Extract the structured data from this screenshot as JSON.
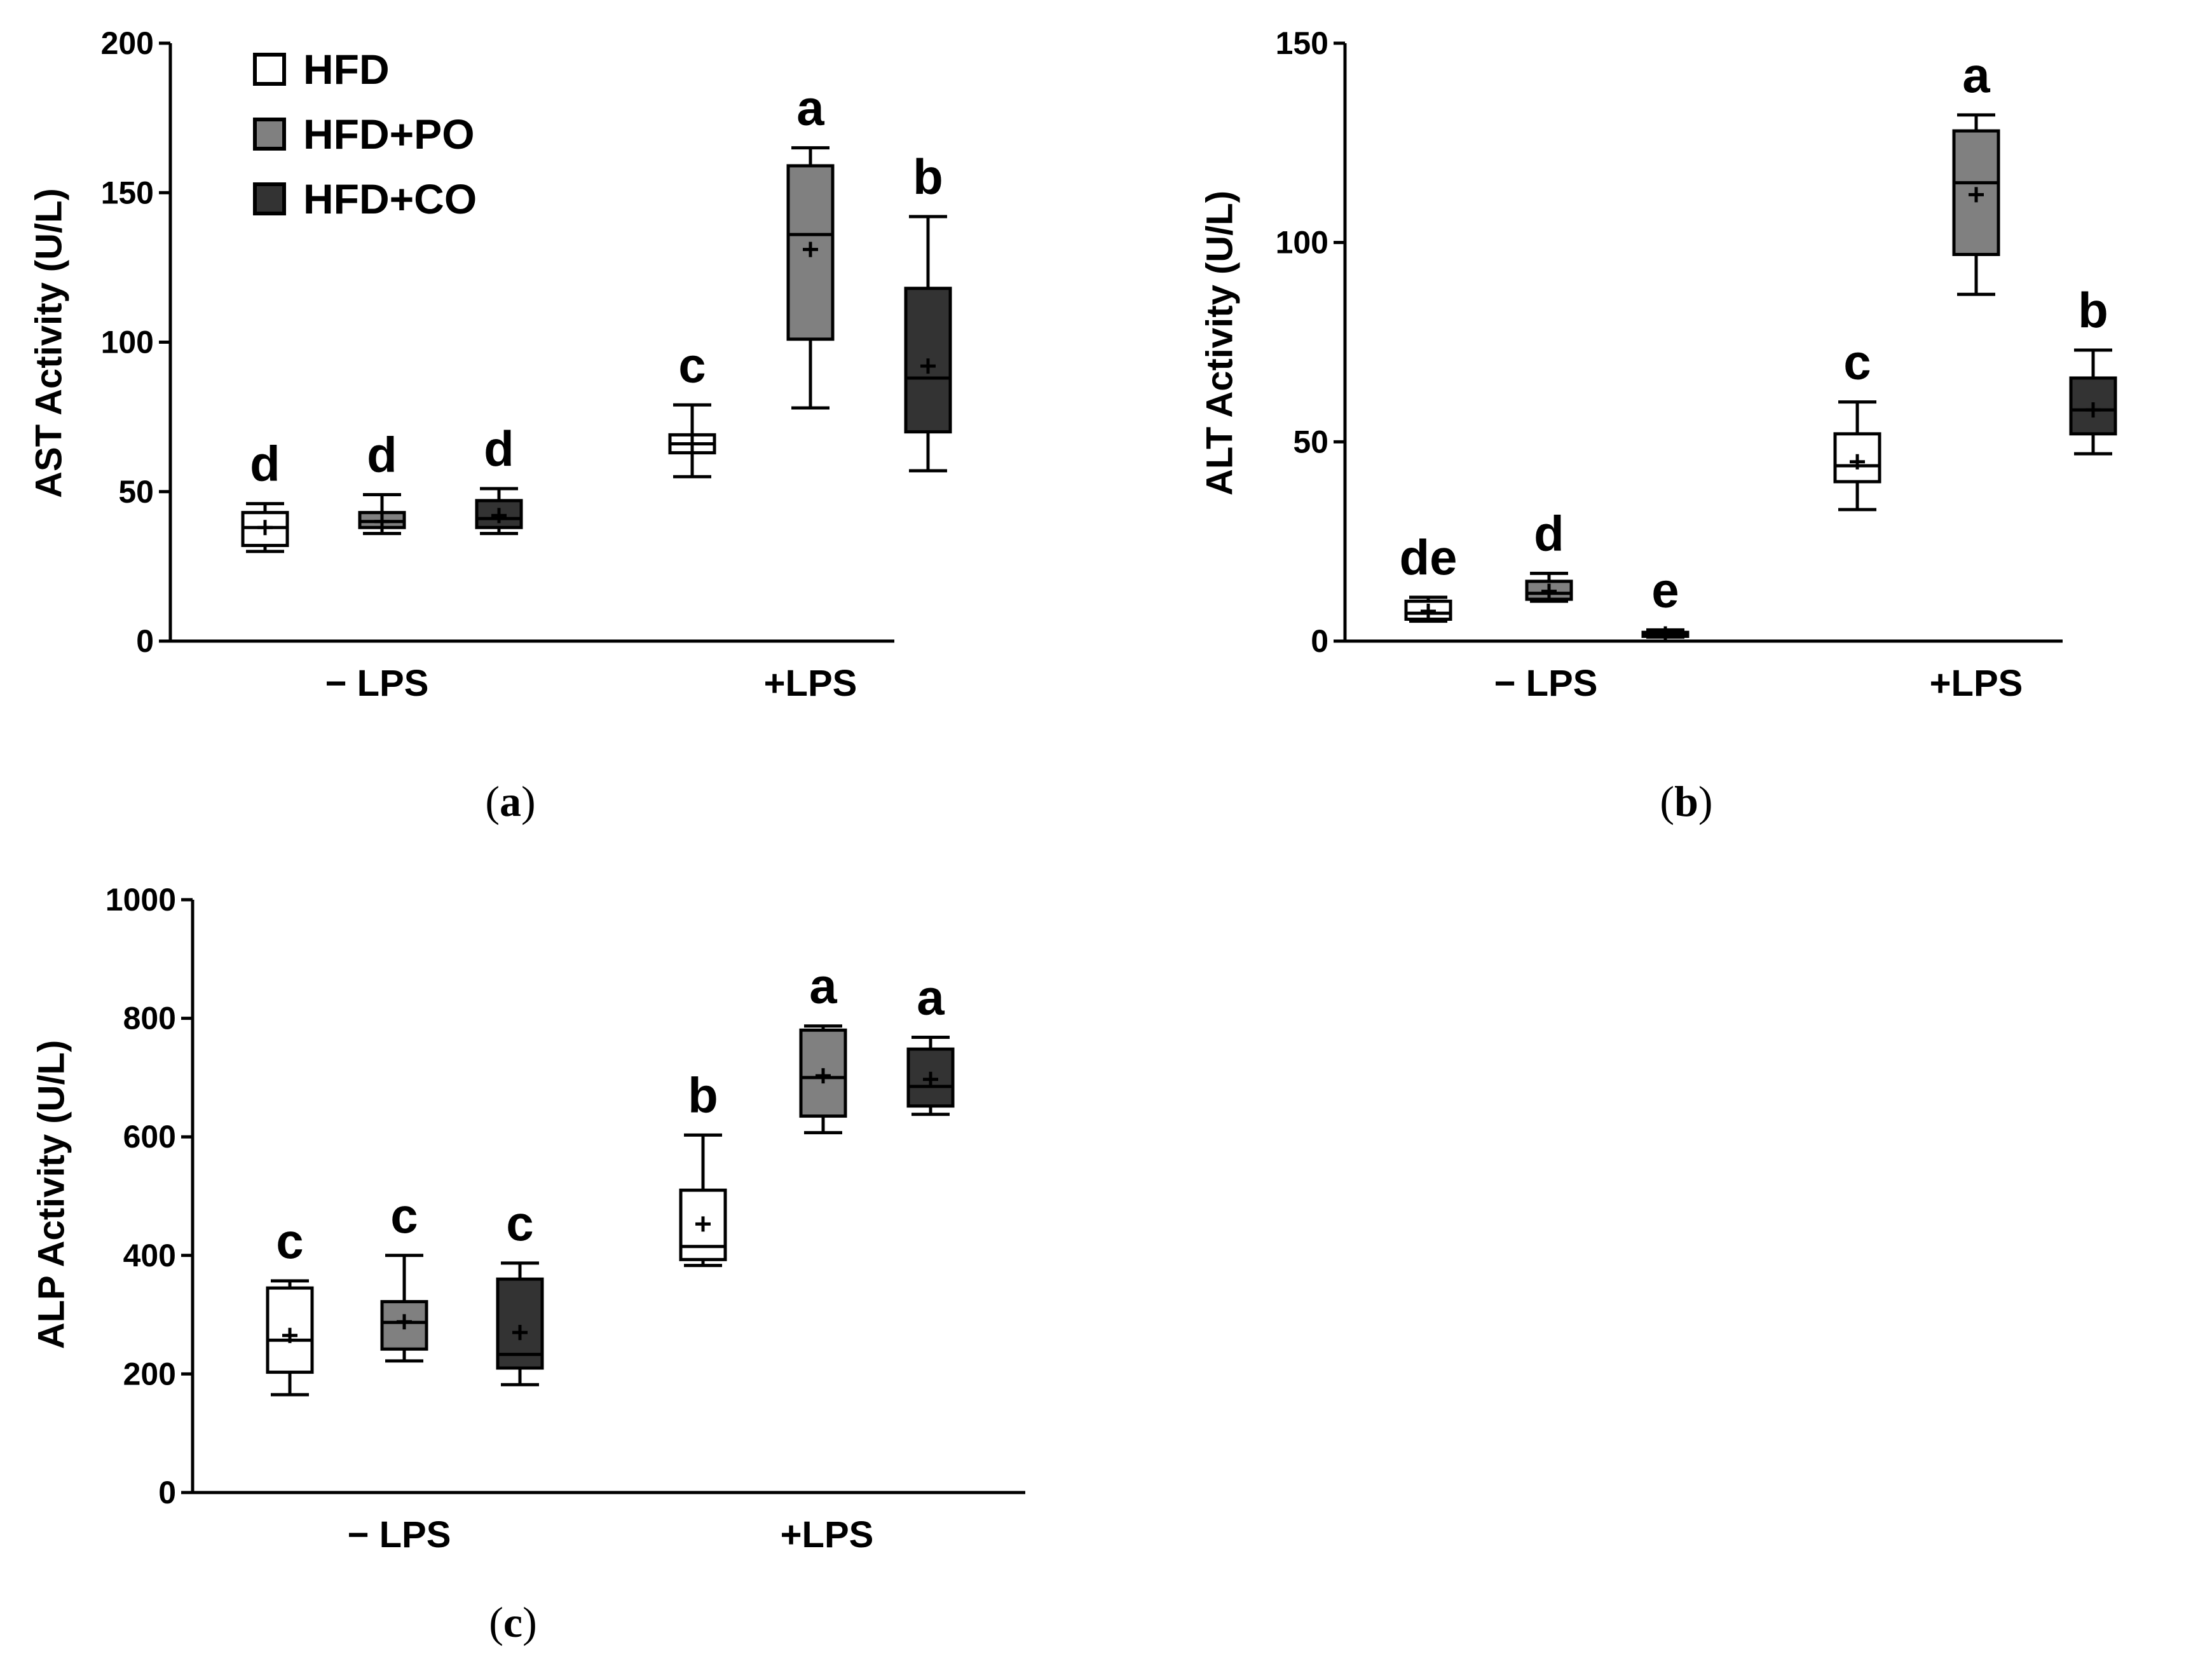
{
  "colors": {
    "HFD": "#ffffff",
    "HFD+PO": "#808080",
    "HFD+CO": "#333333",
    "stroke": "#000000"
  },
  "legend": {
    "entries": [
      "HFD",
      "HFD+PO",
      "HFD+CO"
    ]
  },
  "chart_data": [
    {
      "type": "box",
      "panel": "(a)",
      "caption": "a",
      "title": "",
      "xlabel": "",
      "ylabel": "AST Activity (U/L)",
      "ylim": [
        0,
        200
      ],
      "yticks": [
        0,
        50,
        100,
        150,
        200
      ],
      "categories": [
        "− LPS",
        "+LPS"
      ],
      "series": [
        {
          "name": "HFD",
          "boxes": [
            {
              "min": 30,
              "q1": 32,
              "median": 38,
              "q3": 43,
              "max": 46,
              "mean": 38,
              "letter": "d"
            },
            {
              "min": 55,
              "q1": 63,
              "median": 66,
              "q3": 69,
              "max": 79,
              "mean": 66,
              "letter": "c"
            }
          ]
        },
        {
          "name": "HFD+PO",
          "boxes": [
            {
              "min": 36,
              "q1": 38,
              "median": 40,
              "q3": 43,
              "max": 49,
              "mean": 40,
              "letter": "d"
            },
            {
              "min": 78,
              "q1": 101,
              "median": 136,
              "q3": 159,
              "max": 165,
              "mean": 131,
              "letter": "a"
            }
          ]
        },
        {
          "name": "HFD+CO",
          "boxes": [
            {
              "min": 36,
              "q1": 38,
              "median": 41,
              "q3": 47,
              "max": 51,
              "mean": 42,
              "letter": "d"
            },
            {
              "min": 57,
              "q1": 70,
              "median": 88,
              "q3": 118,
              "max": 142,
              "mean": 92,
              "letter": "b"
            }
          ]
        }
      ]
    },
    {
      "type": "box",
      "panel": "(b)",
      "caption": "b",
      "title": "",
      "xlabel": "",
      "ylabel": "ALT Activity (U/L)",
      "ylim": [
        0,
        150
      ],
      "yticks": [
        0,
        50,
        100,
        150
      ],
      "categories": [
        "− LPS",
        "+LPS"
      ],
      "series": [
        {
          "name": "HFD",
          "boxes": [
            {
              "min": 5,
              "q1": 5.5,
              "median": 7,
              "q3": 10,
              "max": 11,
              "mean": 7.5,
              "letter": "de"
            },
            {
              "min": 33,
              "q1": 40,
              "median": 44,
              "q3": 52,
              "max": 60,
              "mean": 45,
              "letter": "c"
            }
          ]
        },
        {
          "name": "HFD+PO",
          "boxes": [
            {
              "min": 10,
              "q1": 10.5,
              "median": 12,
              "q3": 15,
              "max": 17,
              "mean": 12.5,
              "letter": "d"
            },
            {
              "min": 87,
              "q1": 97,
              "median": 115,
              "q3": 128,
              "max": 132,
              "mean": 112,
              "letter": "a"
            }
          ]
        },
        {
          "name": "HFD+CO",
          "boxes": [
            {
              "min": 1,
              "q1": 1.2,
              "median": 1.6,
              "q3": 2.2,
              "max": 2.8,
              "mean": 1.8,
              "letter": "e"
            },
            {
              "min": 47,
              "q1": 52,
              "median": 58,
              "q3": 66,
              "max": 73,
              "mean": 58,
              "letter": "b"
            }
          ]
        }
      ]
    },
    {
      "type": "box",
      "panel": "(c)",
      "caption": "c",
      "title": "",
      "xlabel": "",
      "ylabel": "ALP Activity (U/L)",
      "ylim": [
        0,
        1000
      ],
      "yticks": [
        0,
        200,
        400,
        600,
        800,
        1000
      ],
      "categories": [
        "− LPS",
        "+LPS"
      ],
      "series": [
        {
          "name": "HFD",
          "boxes": [
            {
              "min": 165,
              "q1": 203,
              "median": 257,
              "q3": 345,
              "max": 357,
              "mean": 265,
              "letter": "c"
            },
            {
              "min": 383,
              "q1": 393,
              "median": 415,
              "q3": 510,
              "max": 603,
              "mean": 453,
              "letter": "b"
            }
          ]
        },
        {
          "name": "HFD+PO",
          "boxes": [
            {
              "min": 222,
              "q1": 242,
              "median": 287,
              "q3": 322,
              "max": 400,
              "mean": 288,
              "letter": "c"
            },
            {
              "min": 607,
              "q1": 635,
              "median": 700,
              "q3": 780,
              "max": 787,
              "mean": 703,
              "letter": "a"
            }
          ]
        },
        {
          "name": "HFD+CO",
          "boxes": [
            {
              "min": 182,
              "q1": 210,
              "median": 233,
              "q3": 360,
              "max": 387,
              "mean": 270,
              "letter": "c"
            },
            {
              "min": 638,
              "q1": 652,
              "median": 685,
              "q3": 748,
              "max": 768,
              "mean": 697,
              "letter": "a"
            }
          ]
        }
      ]
    }
  ]
}
